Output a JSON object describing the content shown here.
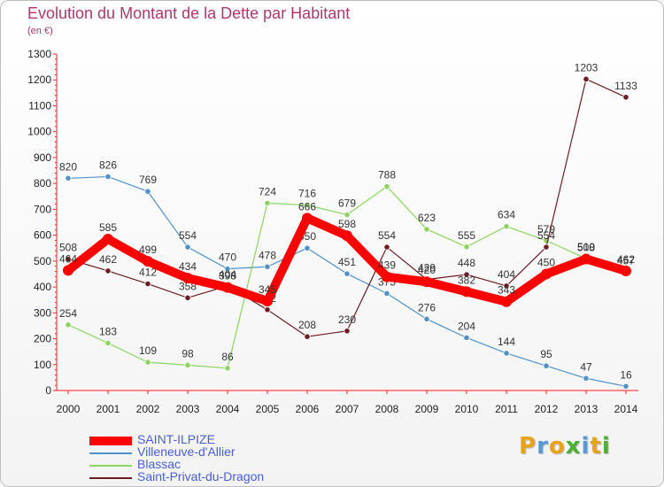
{
  "chart_data": {
    "type": "line",
    "title": "Evolution du Montant de la Dette par Habitant",
    "subtitle": "(en €)",
    "x": [
      "2000",
      "2001",
      "2002",
      "2003",
      "2004",
      "2005",
      "2006",
      "2007",
      "2008",
      "2009",
      "2010",
      "2011",
      "2012",
      "2013",
      "2014"
    ],
    "ylim": [
      0,
      1300
    ],
    "yticks": [
      0,
      100,
      200,
      300,
      400,
      500,
      600,
      700,
      800,
      900,
      1000,
      1100,
      1200,
      1300
    ],
    "grid": false,
    "legend_position": "bottom-left",
    "series": [
      {
        "name": "SAINT-ILPIZE",
        "color": "#ff0000",
        "values": [
          464,
          585,
          499,
          434,
          398,
          345,
          666,
          598,
          439,
          420,
          382,
          343,
          450,
          508,
          462
        ]
      },
      {
        "name": "Villeneuve-d'Allier",
        "color": "#4f92c9",
        "values": [
          820,
          826,
          769,
          554,
          470,
          478,
          550,
          451,
          375,
          276,
          204,
          144,
          95,
          47,
          16
        ]
      },
      {
        "name": "Blassac",
        "color": "#8cd460",
        "values": [
          254,
          183,
          109,
          98,
          86,
          724,
          716,
          679,
          788,
          623,
          555,
          634,
          579,
          510,
          457
        ]
      },
      {
        "name": "Saint-Privat-du-Dragon",
        "color": "#6b1d22",
        "values": [
          508,
          462,
          412,
          358,
          404,
          312,
          208,
          230,
          554,
          429,
          448,
          404,
          554,
          1203,
          1133
        ]
      }
    ]
  },
  "logo": {
    "text": [
      "P",
      "r",
      "o",
      "x",
      "i",
      "t",
      "i"
    ],
    "colors": [
      "#e8a416",
      "#5b9bd5",
      "#e8a416",
      "#4bb033",
      "#5b9bd5",
      "#e8a416",
      "#4bb033"
    ]
  }
}
